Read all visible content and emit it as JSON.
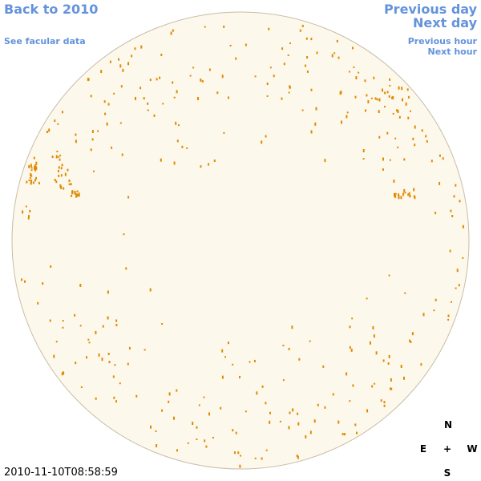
{
  "links": {
    "back": "Back to 2010",
    "facular": "See facular data",
    "previous_day": "Previous day",
    "next_day": "Next day",
    "previous_hour": "Previous hour",
    "next_hour": "Next hour"
  },
  "timestamp": "2010-11-10T08:58:59",
  "compass": {
    "north": "N",
    "east": "E",
    "center": "+",
    "west": "W",
    "south": "S"
  }
}
